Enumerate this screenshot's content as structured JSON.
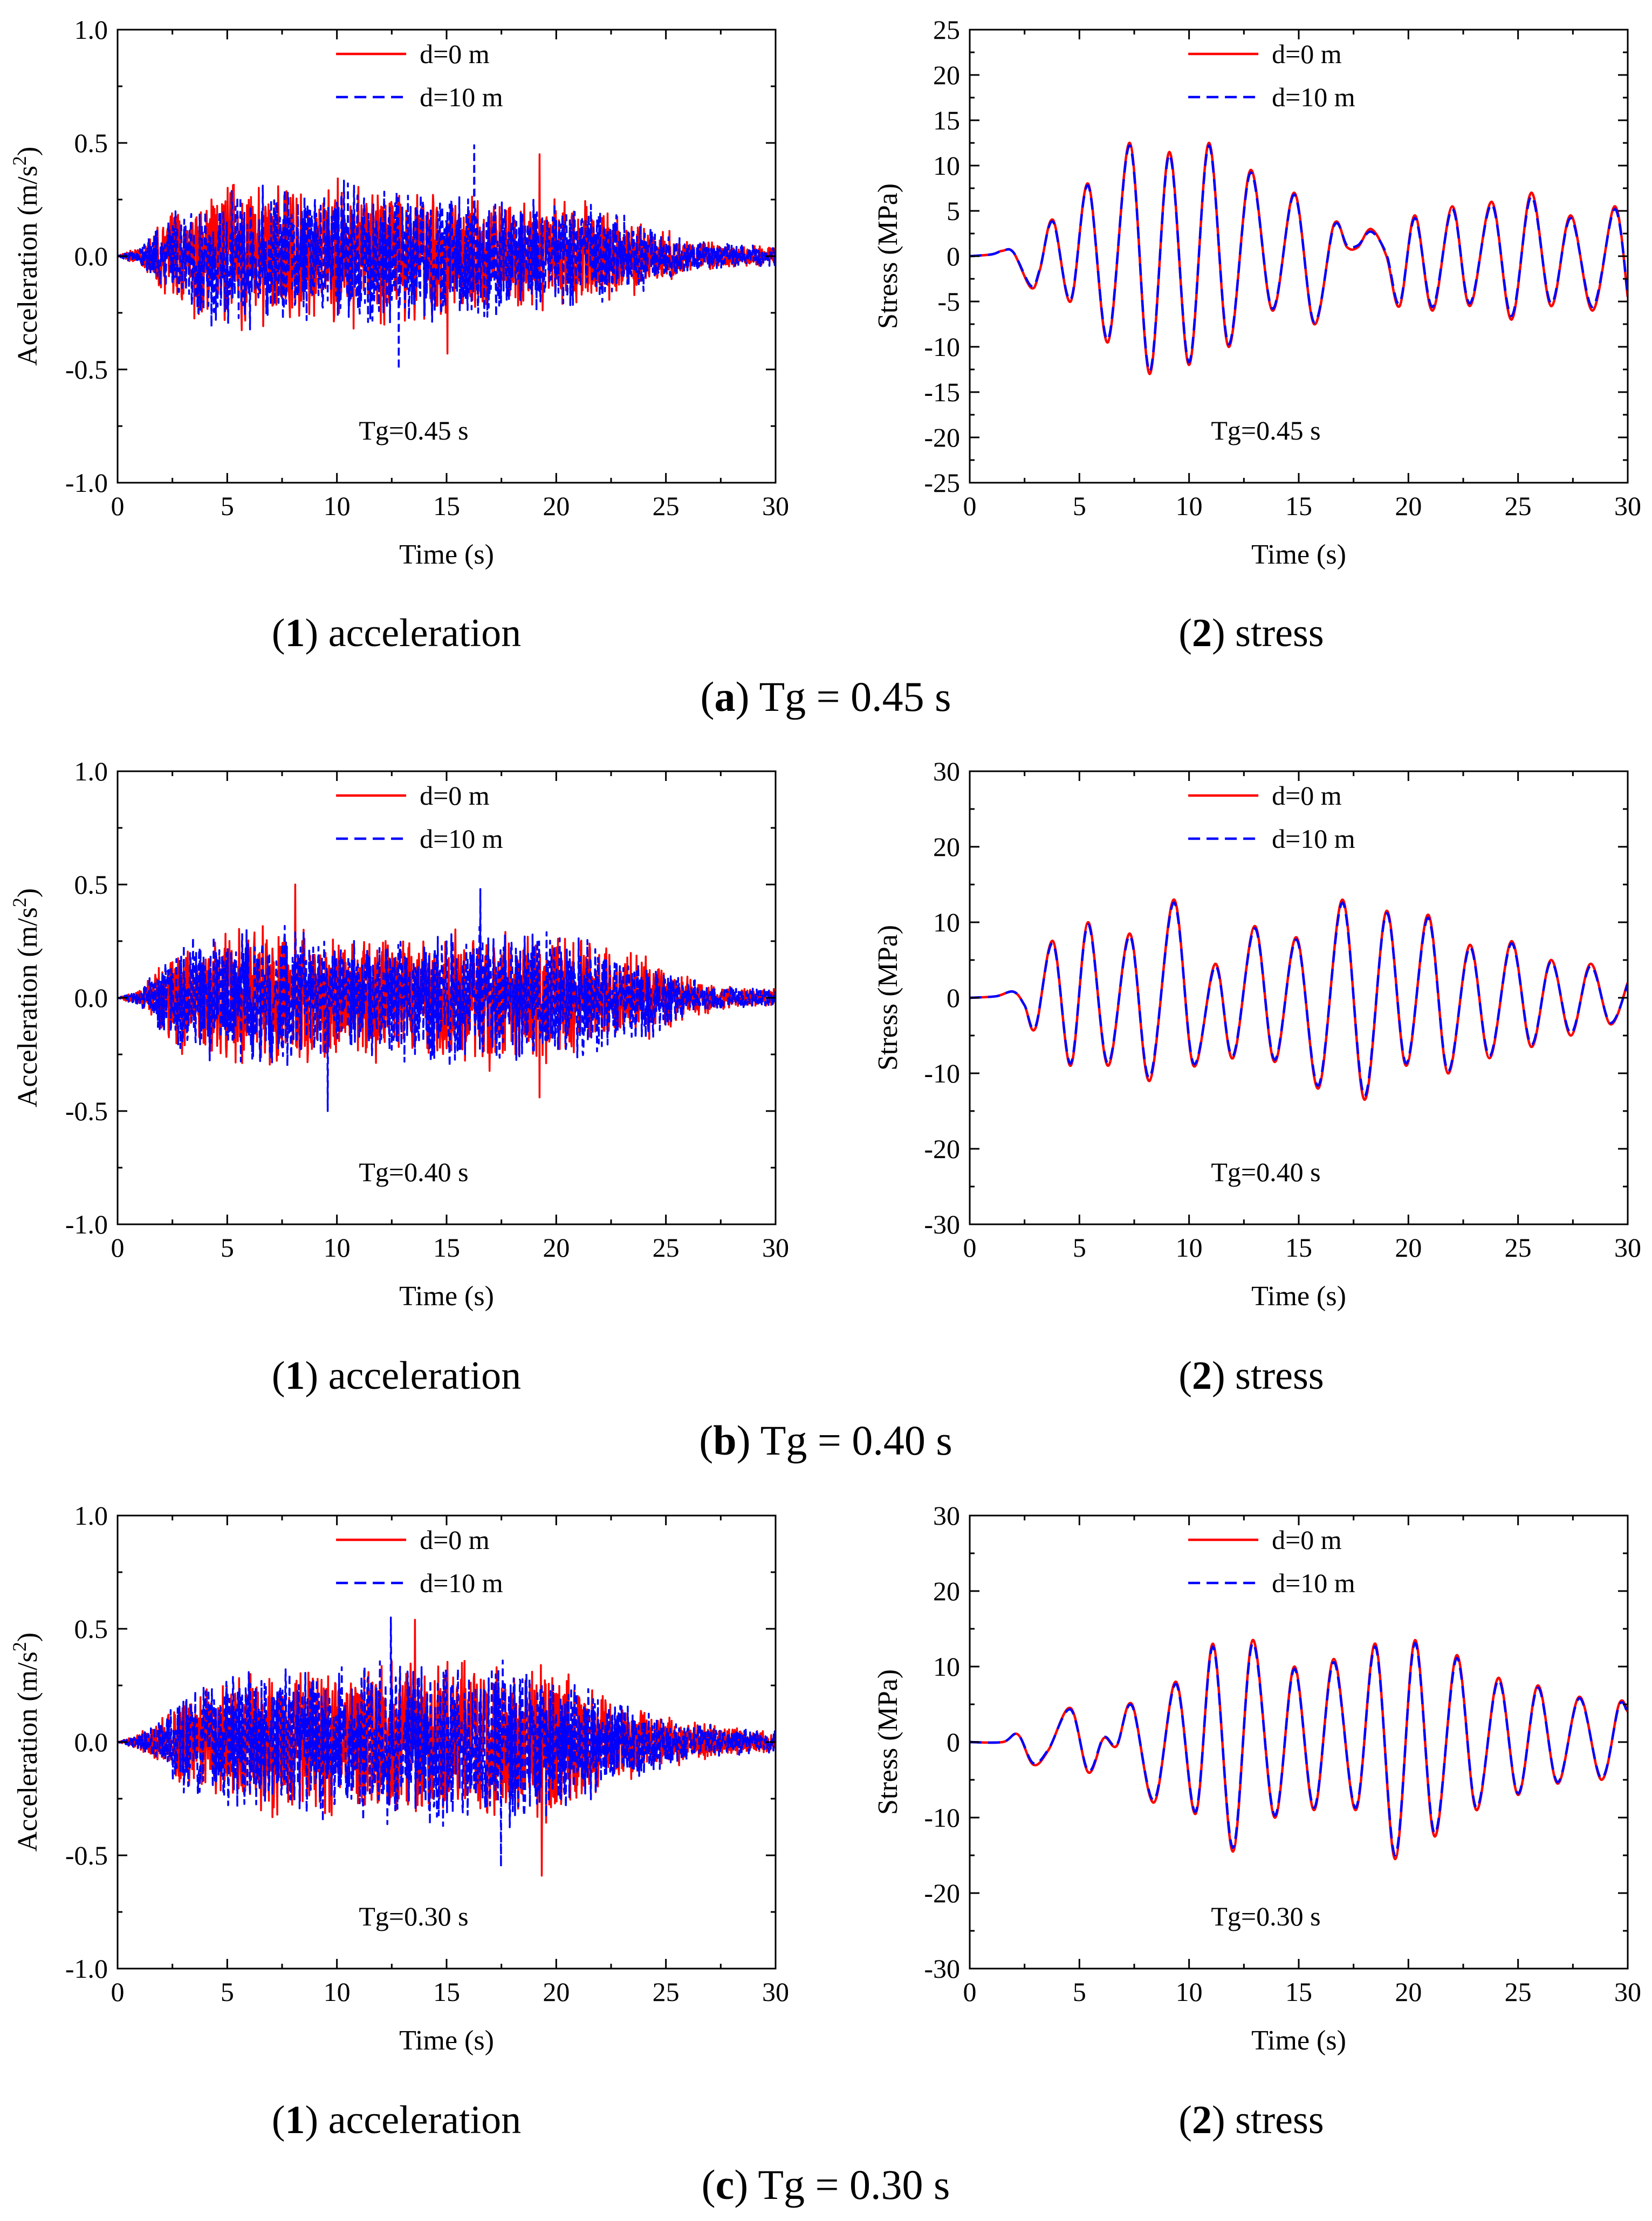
{
  "figure": {
    "groups": [
      {
        "caption_letter": "a",
        "caption_text": "Tg = 0.45 s"
      },
      {
        "caption_letter": "b",
        "caption_text": "Tg = 0.40 s"
      },
      {
        "caption_letter": "c",
        "caption_text": "Tg = 0.30 s"
      }
    ]
  },
  "colors": {
    "d0": "#ff0000",
    "d10": "#0000ff",
    "axis": "#000000"
  },
  "chart_data": [
    {
      "id": "a1",
      "type": "line",
      "subcaption_num": "1",
      "subcaption_text": " acceleration",
      "xlabel": "Time (s)",
      "ylabel_main": "Acceleration (m/s",
      "ylabel_sup": "2",
      "ylabel_tail": ")",
      "annotation": "Tg=0.45 s",
      "xlim": [
        0,
        30
      ],
      "ylim": [
        -1.0,
        1.0
      ],
      "xticks": [
        0,
        5,
        10,
        15,
        20,
        25,
        30
      ],
      "xtick_labels": [
        "0",
        "5",
        "10",
        "15",
        "20",
        "25",
        "30"
      ],
      "yticks": [
        -1.0,
        -0.5,
        0.0,
        0.5,
        1.0
      ],
      "ytick_labels": [
        "-1.0",
        "-0.5",
        "0.0",
        "0.5",
        "1.0"
      ],
      "legend": [
        "d=0 m",
        "d=10 m"
      ],
      "legend_position": "top-center",
      "series": [
        {
          "name": "d=0 m",
          "kind": "noise",
          "seed": 11,
          "peaks": [
            0.45,
            -0.43
          ]
        },
        {
          "name": "d=10 m",
          "kind": "noise",
          "seed": 23,
          "peaks": [
            0.49,
            -0.5
          ]
        }
      ],
      "envelope_t": [
        0,
        1,
        2,
        3,
        5,
        7,
        10,
        13,
        17,
        21,
        24,
        26,
        28,
        30
      ],
      "envelope_a": [
        0.0,
        0.05,
        0.18,
        0.28,
        0.36,
        0.32,
        0.35,
        0.33,
        0.28,
        0.26,
        0.17,
        0.08,
        0.06,
        0.05
      ]
    },
    {
      "id": "a2",
      "type": "line",
      "subcaption_num": "2",
      "subcaption_text": " stress",
      "xlabel": "Time (s)",
      "ylabel_main": "Stress (MPa)",
      "ylabel_sup": "",
      "ylabel_tail": "",
      "annotation": "Tg=0.45 s",
      "xlim": [
        0,
        30
      ],
      "ylim": [
        -25,
        25
      ],
      "xticks": [
        0,
        5,
        10,
        15,
        20,
        25,
        30
      ],
      "xtick_labels": [
        "0",
        "5",
        "10",
        "15",
        "20",
        "25",
        "30"
      ],
      "yticks": [
        -25,
        -20,
        -15,
        -10,
        -5,
        0,
        5,
        10,
        15,
        20,
        25
      ],
      "ytick_labels": [
        "-25",
        "-20",
        "-15",
        "-10",
        "-5",
        "0",
        "5",
        "10",
        "15",
        "20",
        "25"
      ],
      "legend": [
        "d=0 m",
        "d=10 m"
      ],
      "legend_position": "top-center",
      "series": [
        {
          "name": "d=0 m",
          "kind": "points",
          "t": [
            0,
            1.0,
            1.5,
            2.0,
            2.8,
            3.2,
            3.8,
            4.6,
            5.4,
            6.3,
            7.3,
            8.2,
            9.1,
            10.0,
            10.9,
            11.8,
            12.8,
            13.8,
            14.8,
            15.7,
            16.6,
            17.2,
            17.7,
            18.3,
            19.0,
            19.6,
            20.3,
            21.1,
            22.0,
            22.8,
            23.8,
            24.7,
            25.6,
            26.5,
            27.4,
            28.4,
            29.4,
            30.0
          ],
          "y": [
            0,
            0.2,
            0.6,
            0.4,
            -3.5,
            -1.5,
            4.0,
            -5.0,
            8.0,
            -9.5,
            12.5,
            -13.0,
            11.5,
            -12.0,
            12.5,
            -10.0,
            9.5,
            -6.0,
            7.0,
            -7.5,
            3.5,
            1.0,
            1.0,
            3.0,
            0.0,
            -5.5,
            4.5,
            -6.0,
            5.5,
            -5.5,
            6.0,
            -7.0,
            7.0,
            -5.5,
            4.5,
            -6.0,
            5.5,
            -4.5
          ]
        },
        {
          "name": "d=10 m",
          "kind": "points",
          "t": [
            0,
            1.0,
            1.5,
            2.0,
            2.8,
            3.2,
            3.8,
            4.6,
            5.4,
            6.3,
            7.3,
            8.2,
            9.1,
            10.0,
            10.9,
            11.8,
            12.8,
            13.8,
            14.8,
            15.7,
            16.6,
            17.2,
            17.7,
            18.3,
            19.0,
            19.6,
            20.3,
            21.1,
            22.0,
            22.8,
            23.8,
            24.7,
            25.6,
            26.5,
            27.4,
            28.4,
            29.4,
            30.0
          ],
          "y": [
            0,
            0.2,
            0.6,
            0.4,
            -3.3,
            -1.4,
            3.8,
            -4.8,
            7.8,
            -9.2,
            12.2,
            -12.7,
            11.2,
            -11.7,
            12.2,
            -9.7,
            9.2,
            -5.8,
            6.8,
            -7.3,
            3.3,
            1.2,
            1.2,
            2.7,
            0.2,
            -5.2,
            4.2,
            -5.6,
            5.2,
            -5.2,
            5.7,
            -6.6,
            6.6,
            -5.2,
            4.2,
            -5.6,
            5.2,
            -4.2
          ]
        }
      ]
    },
    {
      "id": "b1",
      "type": "line",
      "subcaption_num": "1",
      "subcaption_text": " acceleration",
      "xlabel": "Time (s)",
      "ylabel_main": "Acceleration (m/s",
      "ylabel_sup": "2",
      "ylabel_tail": ")",
      "annotation": "Tg=0.40 s",
      "xlim": [
        0,
        30
      ],
      "ylim": [
        -1.0,
        1.0
      ],
      "xticks": [
        0,
        5,
        10,
        15,
        20,
        25,
        30
      ],
      "xtick_labels": [
        "0",
        "5",
        "10",
        "15",
        "20",
        "25",
        "30"
      ],
      "yticks": [
        -1.0,
        -0.5,
        0.0,
        0.5,
        1.0
      ],
      "ytick_labels": [
        "-1.0",
        "-0.5",
        "0.0",
        "0.5",
        "1.0"
      ],
      "legend": [
        "d=0 m",
        "d=10 m"
      ],
      "legend_position": "top-center",
      "series": [
        {
          "name": "d=0 m",
          "kind": "noise",
          "seed": 37,
          "peaks": [
            0.5,
            -0.44
          ]
        },
        {
          "name": "d=10 m",
          "kind": "noise",
          "seed": 41,
          "peaks": [
            0.48,
            -0.5
          ]
        }
      ],
      "envelope_t": [
        0,
        1,
        2,
        3,
        5,
        7,
        10,
        13,
        17,
        21,
        24,
        26,
        28,
        30
      ],
      "envelope_a": [
        0.0,
        0.04,
        0.16,
        0.27,
        0.33,
        0.34,
        0.3,
        0.3,
        0.33,
        0.29,
        0.2,
        0.1,
        0.05,
        0.04
      ]
    },
    {
      "id": "b2",
      "type": "line",
      "subcaption_num": "2",
      "subcaption_text": " stress",
      "xlabel": "Time (s)",
      "ylabel_main": "Stress (MPa)",
      "ylabel_sup": "",
      "ylabel_tail": "",
      "annotation": "Tg=0.40 s",
      "xlim": [
        0,
        30
      ],
      "ylim": [
        -30,
        30
      ],
      "xticks": [
        0,
        5,
        10,
        15,
        20,
        25,
        30
      ],
      "xtick_labels": [
        "0",
        "5",
        "10",
        "15",
        "20",
        "25",
        "30"
      ],
      "yticks": [
        -30,
        -20,
        -10,
        0,
        10,
        20,
        30
      ],
      "ytick_labels": [
        "-30",
        "-20",
        "-10",
        "0",
        "10",
        "20",
        "30"
      ],
      "legend": [
        "d=0 m",
        "d=10 m"
      ],
      "legend_position": "top-center",
      "series": [
        {
          "name": "d=0 m",
          "kind": "points",
          "t": [
            0,
            1.2,
            2.0,
            2.5,
            3.0,
            3.8,
            4.6,
            5.4,
            6.3,
            7.3,
            8.2,
            9.3,
            10.2,
            11.2,
            12.0,
            13.0,
            13.9,
            14.9,
            15.9,
            17.0,
            18.0,
            19.0,
            19.9,
            20.9,
            21.8,
            22.8,
            23.7,
            24.7,
            25.6,
            26.5,
            27.4,
            28.3,
            29.2,
            30.0
          ],
          "y": [
            0,
            0.2,
            0.8,
            -1.0,
            -4.0,
            7.5,
            -9.0,
            10.0,
            -9.0,
            8.5,
            -11.0,
            13.0,
            -9.0,
            4.5,
            -8.0,
            9.5,
            -8.5,
            8.0,
            -12.0,
            13.0,
            -13.5,
            11.5,
            -9.0,
            11.0,
            -10.0,
            7.0,
            -8.0,
            7.5,
            -6.5,
            5.0,
            -5.0,
            4.5,
            -3.5,
            2.0
          ]
        },
        {
          "name": "d=10 m",
          "kind": "points",
          "t": [
            0,
            1.2,
            2.0,
            2.5,
            3.0,
            3.8,
            4.6,
            5.4,
            6.3,
            7.3,
            8.2,
            9.3,
            10.2,
            11.2,
            12.0,
            13.0,
            13.9,
            14.9,
            15.9,
            17.0,
            18.0,
            19.0,
            19.9,
            20.9,
            21.8,
            22.8,
            23.7,
            24.7,
            25.6,
            26.5,
            27.4,
            28.3,
            29.2,
            30.0
          ],
          "y": [
            0,
            0.2,
            0.8,
            -1.0,
            -3.8,
            7.2,
            -8.7,
            9.7,
            -8.7,
            8.2,
            -10.6,
            12.6,
            -8.7,
            4.2,
            -7.7,
            9.2,
            -8.2,
            7.7,
            -11.6,
            12.6,
            -13.0,
            11.2,
            -8.7,
            10.6,
            -9.7,
            6.7,
            -7.7,
            7.2,
            -6.2,
            4.8,
            -4.7,
            4.2,
            -3.3,
            1.8
          ]
        }
      ]
    },
    {
      "id": "c1",
      "type": "line",
      "subcaption_num": "1",
      "subcaption_text": " acceleration",
      "xlabel": "Time (s)",
      "ylabel_main": "Acceleration (m/s",
      "ylabel_sup": "2",
      "ylabel_tail": ")",
      "annotation": "Tg=0.30 s",
      "xlim": [
        0,
        30
      ],
      "ylim": [
        -1.0,
        1.0
      ],
      "xticks": [
        0,
        5,
        10,
        15,
        20,
        25,
        30
      ],
      "xtick_labels": [
        "0",
        "5",
        "10",
        "15",
        "20",
        "25",
        "30"
      ],
      "yticks": [
        -1.0,
        -0.5,
        0.0,
        0.5,
        1.0
      ],
      "ytick_labels": [
        "-1.0",
        "-0.5",
        "0.0",
        "0.5",
        "1.0"
      ],
      "legend": [
        "d=0 m",
        "d=10 m"
      ],
      "legend_position": "top-center",
      "series": [
        {
          "name": "d=0 m",
          "kind": "noise",
          "seed": 53,
          "peaks": [
            0.54,
            -0.59
          ]
        },
        {
          "name": "d=10 m",
          "kind": "noise",
          "seed": 67,
          "peaks": [
            0.55,
            -0.55
          ]
        }
      ],
      "envelope_t": [
        0,
        1,
        2,
        3,
        5,
        7,
        10,
        12,
        14,
        17,
        20,
        22,
        24,
        26,
        28,
        30
      ],
      "envelope_a": [
        0.0,
        0.04,
        0.12,
        0.25,
        0.32,
        0.34,
        0.36,
        0.4,
        0.38,
        0.4,
        0.36,
        0.25,
        0.15,
        0.1,
        0.07,
        0.05
      ]
    },
    {
      "id": "c2",
      "type": "line",
      "subcaption_num": "2",
      "subcaption_text": " stress",
      "xlabel": "Time (s)",
      "ylabel_main": "Stress (MPa)",
      "ylabel_sup": "",
      "ylabel_tail": "",
      "annotation": "Tg=0.30 s",
      "xlim": [
        0,
        30
      ],
      "ylim": [
        -30,
        30
      ],
      "xticks": [
        0,
        5,
        10,
        15,
        20,
        25,
        30
      ],
      "xtick_labels": [
        "0",
        "5",
        "10",
        "15",
        "20",
        "25",
        "30"
      ],
      "yticks": [
        -30,
        -20,
        -10,
        0,
        10,
        20,
        30
      ],
      "ytick_labels": [
        "-30",
        "-20",
        "-10",
        "0",
        "10",
        "20",
        "30"
      ],
      "legend": [
        "d=0 m",
        "d=10 m"
      ],
      "legend_position": "top-center",
      "series": [
        {
          "name": "d=0 m",
          "kind": "points",
          "t": [
            0,
            1.5,
            2.2,
            2.9,
            3.6,
            4.6,
            5.4,
            6.1,
            6.7,
            7.4,
            8.4,
            9.4,
            10.3,
            11.1,
            12.0,
            12.9,
            13.9,
            14.8,
            15.7,
            16.6,
            17.6,
            18.5,
            19.4,
            20.3,
            21.2,
            22.2,
            23.1,
            24.1,
            25.0,
            25.9,
            26.8,
            27.8,
            28.8,
            29.6,
            30.0
          ],
          "y": [
            0,
            0.0,
            1.0,
            -3.0,
            -1.0,
            4.5,
            -4.0,
            0.5,
            -0.5,
            5.0,
            -8.0,
            8.0,
            -9.5,
            13.0,
            -14.5,
            13.5,
            -10.0,
            10.0,
            -9.0,
            11.0,
            -9.0,
            13.0,
            -15.5,
            13.5,
            -12.5,
            11.5,
            -9.0,
            8.5,
            -7.0,
            7.5,
            -5.5,
            6.0,
            -5.0,
            5.0,
            4.0
          ]
        },
        {
          "name": "d=10 m",
          "kind": "points",
          "t": [
            0,
            1.5,
            2.2,
            2.9,
            3.6,
            4.6,
            5.4,
            6.1,
            6.7,
            7.4,
            8.4,
            9.4,
            10.3,
            11.1,
            12.0,
            12.9,
            13.9,
            14.8,
            15.7,
            16.6,
            17.6,
            18.5,
            19.4,
            20.3,
            21.2,
            22.2,
            23.1,
            24.1,
            25.0,
            25.9,
            26.8,
            27.8,
            28.8,
            29.6,
            30.0
          ],
          "y": [
            0,
            0.0,
            1.0,
            -2.8,
            -0.9,
            4.3,
            -3.8,
            0.6,
            -0.4,
            4.8,
            -7.7,
            7.7,
            -9.2,
            12.6,
            -14.0,
            13.1,
            -9.7,
            9.7,
            -8.7,
            10.6,
            -8.7,
            12.6,
            -15.0,
            13.1,
            -12.1,
            11.1,
            -8.7,
            8.2,
            -6.8,
            7.2,
            -5.3,
            5.8,
            -4.8,
            4.8,
            3.8
          ]
        }
      ]
    }
  ]
}
